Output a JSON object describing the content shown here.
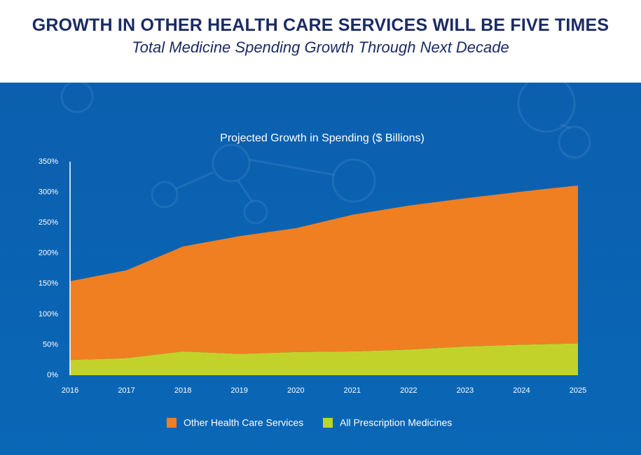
{
  "header": {
    "title": "GROWTH IN OTHER HEALTH CARE SERVICES WILL BE FIVE TIMES",
    "subtitle": "Total Medicine Spending Growth Through Next Decade"
  },
  "chart_data": {
    "type": "stacked-area",
    "title": "Projected Growth in Spending ($ Billions)",
    "categories": [
      "2016",
      "2017",
      "2018",
      "2019",
      "2020",
      "2021",
      "2022",
      "2023",
      "2024",
      "2025"
    ],
    "series": [
      {
        "name": "Other Health Care Services",
        "color": "#f07f22",
        "values": [
          129,
          144,
          172,
          193,
          203,
          224,
          236,
          243,
          251,
          259
        ]
      },
      {
        "name": "All Prescription Medicines",
        "color": "#c3d22b",
        "values": [
          25,
          28,
          39,
          35,
          38,
          39,
          42,
          47,
          50,
          52
        ]
      }
    ],
    "ylim": [
      0,
      350
    ],
    "yticks": [
      {
        "value": 0,
        "label": "0%"
      },
      {
        "value": 50,
        "label": "50%"
      },
      {
        "value": 100,
        "label": "100%"
      },
      {
        "value": 150,
        "label": "150%"
      },
      {
        "value": 200,
        "label": "200%"
      },
      {
        "value": 250,
        "label": "250%"
      },
      {
        "value": 300,
        "label": "300%"
      },
      {
        "value": 350,
        "label": "350%"
      }
    ],
    "grid": false
  }
}
